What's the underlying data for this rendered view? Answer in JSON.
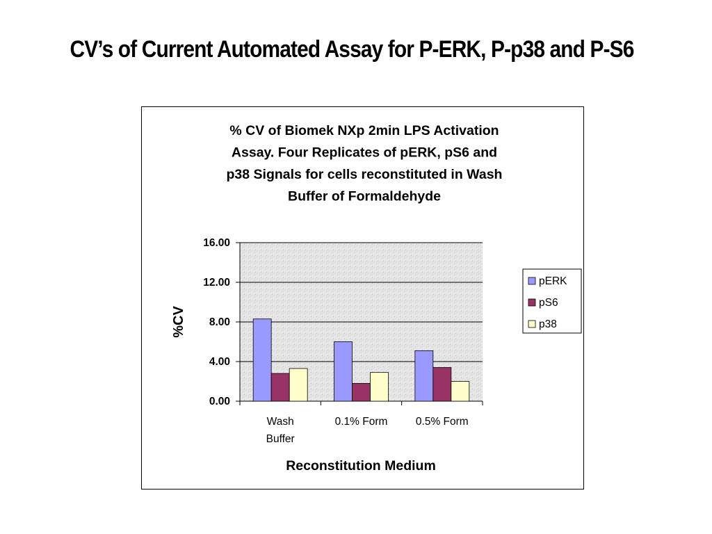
{
  "slide": {
    "title": "CV’s of Current Automated Assay for P-ERK, P-p38 and P-S6"
  },
  "chart_data": {
    "type": "bar",
    "title_lines": [
      "% CV of  Biomek NXp 2min LPS Activation",
      "Assay. Four Replicates of pERK, pS6 and",
      "p38 Signals for cells reconstituted in Wash",
      "Buffer of Formaldehyde"
    ],
    "xlabel": "Reconstitution Medium",
    "ylabel": "%CV",
    "categories": [
      [
        "Wash",
        "Buffer"
      ],
      [
        "0.1% Form"
      ],
      [
        "0.5% Form"
      ]
    ],
    "series": [
      {
        "name": "pERK",
        "color": "#9999ff",
        "values": [
          8.3,
          6.0,
          5.1
        ]
      },
      {
        "name": "pS6",
        "color": "#993366",
        "values": [
          2.8,
          1.8,
          3.4
        ]
      },
      {
        "name": "p38",
        "color": "#ffffcc",
        "values": [
          3.3,
          2.9,
          2.0
        ]
      }
    ],
    "ylim": [
      0,
      16
    ],
    "yticks": [
      "0.00",
      "4.00",
      "8.00",
      "12.00",
      "16.00"
    ],
    "ytick_values": [
      0,
      4,
      8,
      12,
      16
    ],
    "grid": true,
    "legend_position": "right",
    "plot_background": "gray-textured"
  }
}
